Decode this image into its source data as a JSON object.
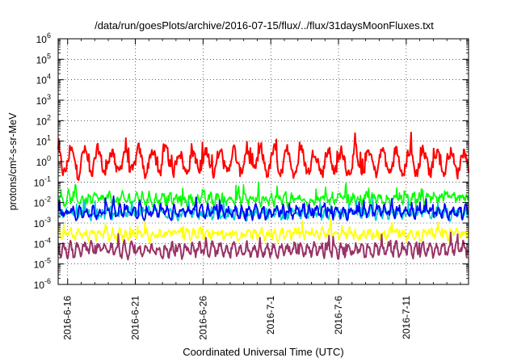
{
  "chart_data": {
    "type": "line",
    "title": "/data/run/goesPlots/archive/2016-07-15/flux/../flux/31daysMoonFluxes.txt",
    "xlabel": "Coordinated Universal Time (UTC)",
    "ylabel": "protons/cm²-s-sr-MeV",
    "y_scale": "log",
    "ylim_exponent": [
      -6,
      6
    ],
    "y_tick_labels": [
      {
        "base": "10",
        "exp": "-6"
      },
      {
        "base": "10",
        "exp": "-5"
      },
      {
        "base": "10",
        "exp": "-4"
      },
      {
        "base": "10",
        "exp": "-3"
      },
      {
        "base": "10",
        "exp": "-2"
      },
      {
        "base": "10",
        "exp": "-1"
      },
      {
        "base": "10",
        "exp": "0"
      },
      {
        "base": "10",
        "exp": "1"
      },
      {
        "base": "10",
        "exp": "2"
      },
      {
        "base": "10",
        "exp": "3"
      },
      {
        "base": "10",
        "exp": "4"
      },
      {
        "base": "10",
        "exp": "5"
      },
      {
        "base": "10",
        "exp": "6"
      }
    ],
    "x_tick_labels": [
      "2016-6-16",
      "2016-6-21",
      "2016-6-26",
      "2016-7-1",
      "2016-7-6",
      "2016-7-11"
    ],
    "x_range_days_from_tick0": [
      -0.7,
      29.6
    ],
    "grid": true,
    "legend": "none",
    "series": [
      {
        "color": "#ff0000",
        "logMean": 0.0,
        "amp": 0.55,
        "noise": 0.45,
        "period": 1.0,
        "lw": 2
      },
      {
        "color": "#00ff00",
        "logMean": -1.85,
        "amp": 0.15,
        "noise": 0.35,
        "period": 0.5,
        "lw": 1.6
      },
      {
        "color": "#00cccc",
        "logMean": -2.55,
        "amp": 0.1,
        "noise": 0.35,
        "period": 0.5,
        "lw": 1.6
      },
      {
        "color": "#0000ff",
        "logMean": -2.45,
        "amp": 0.2,
        "noise": 0.3,
        "period": 0.5,
        "lw": 1.8
      },
      {
        "color": "#ffff00",
        "logMean": -3.55,
        "amp": 0.15,
        "noise": 0.3,
        "period": 0.5,
        "lw": 1.6
      },
      {
        "color": "#993366",
        "logMean": -4.3,
        "amp": 0.25,
        "noise": 0.3,
        "period": 0.5,
        "lw": 2
      }
    ]
  }
}
